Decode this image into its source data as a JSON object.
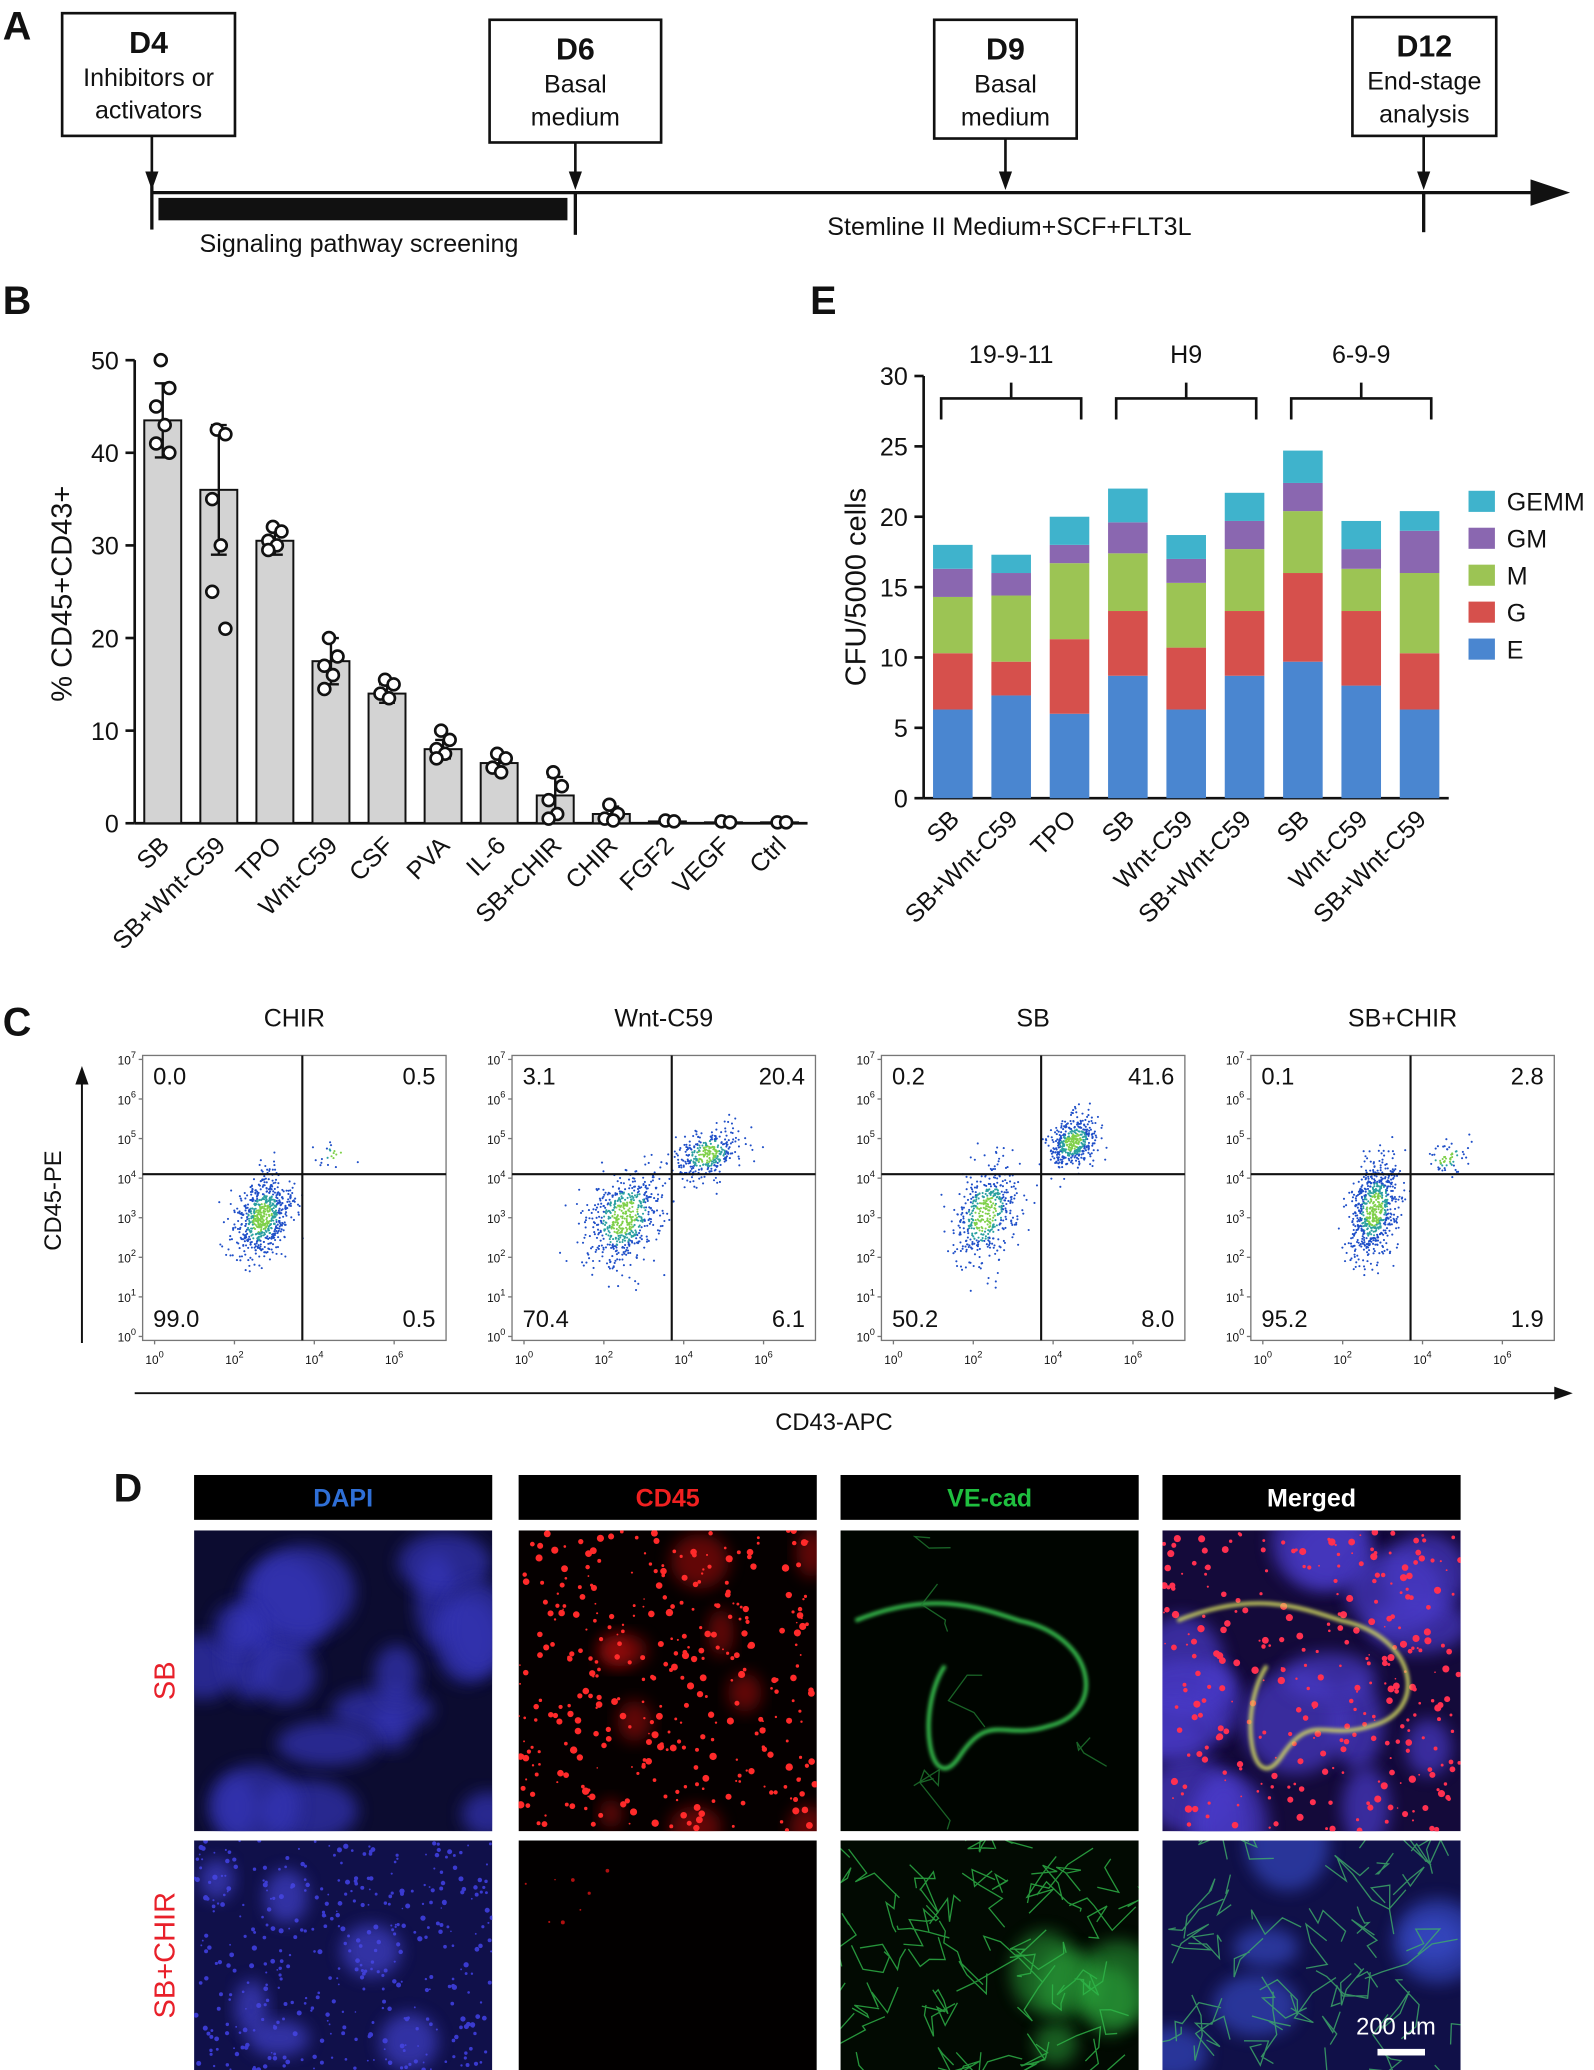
{
  "timeline": {
    "panel": "A",
    "steps": [
      {
        "day": "D4",
        "lines": [
          "Inhibitors or",
          "activators"
        ]
      },
      {
        "day": "D6",
        "lines": [
          "Basal",
          "medium"
        ]
      },
      {
        "day": "D9",
        "lines": [
          "Basal",
          "medium"
        ]
      },
      {
        "day": "D12",
        "lines": [
          "End-stage",
          "analysis"
        ]
      }
    ],
    "screening": "Signaling pathway screening",
    "medium": "Stemline II Medium+SCF+FLT3L"
  },
  "chart_data": [
    {
      "type": "bar",
      "panel": "B",
      "ylabel": "% CD45+CD43+",
      "categories": [
        "SB",
        "SB+Wnt-C59",
        "TPO",
        "Wnt-C59",
        "CSF",
        "PVA",
        "IL-6",
        "SB+CHIR",
        "CHIR",
        "FGF2",
        "VEGF",
        "Ctrl"
      ],
      "values": [
        43.5,
        36,
        30.5,
        17.5,
        14,
        8,
        6.5,
        3,
        1,
        0.2,
        0.1,
        0.1
      ],
      "errors": [
        4,
        7,
        1.5,
        2.5,
        1,
        1,
        1,
        2,
        0.8,
        0.1,
        0.1,
        0.1
      ],
      "points": [
        [
          50,
          47,
          45,
          43,
          41,
          40
        ],
        [
          42.5,
          42,
          35,
          30,
          25,
          21
        ],
        [
          32,
          31.5,
          30.5,
          30,
          29.5
        ],
        [
          20,
          18,
          17,
          16,
          14.5
        ],
        [
          15.5,
          15,
          14,
          13.5
        ],
        [
          10,
          9,
          8,
          7.5,
          7
        ],
        [
          7.5,
          7,
          6,
          5.5
        ],
        [
          5.5,
          4,
          2.5,
          1,
          0.5
        ],
        [
          2,
          1,
          0.5,
          0.3
        ],
        [
          0.3,
          0.2
        ],
        [
          0.2,
          0.1
        ],
        [
          0.1,
          0.1
        ]
      ],
      "color": "#d3d3d3",
      "ylim": [
        0,
        50
      ],
      "yticks": [
        0,
        10,
        20,
        30,
        40,
        50
      ]
    },
    {
      "type": "stacked_bar",
      "panel": "E",
      "ylabel": "CFU/5000 cells",
      "categories": [
        "SB",
        "SB+Wnt-C59",
        "TPO",
        "SB",
        "Wnt-C59",
        "SB+Wnt-C59",
        "SB",
        "Wnt-C59",
        "SB+Wnt-C59"
      ],
      "groups": [
        "19-9-11",
        "H9",
        "6-9-9"
      ],
      "series": [
        {
          "name": "E",
          "color": "#4a86d0",
          "values": [
            6.3,
            7.3,
            6,
            8.7,
            6.3,
            8.7,
            9.7,
            8,
            6.3
          ]
        },
        {
          "name": "G",
          "color": "#d6504c",
          "values": [
            4,
            2.4,
            5.3,
            4.6,
            4.4,
            4.6,
            6.3,
            5.3,
            4
          ]
        },
        {
          "name": "M",
          "color": "#9cc454",
          "values": [
            4,
            4.7,
            5.4,
            4.1,
            4.6,
            4.4,
            4.4,
            3,
            5.7
          ]
        },
        {
          "name": "GM",
          "color": "#8a67b0",
          "values": [
            2,
            1.6,
            1.3,
            2.2,
            1.7,
            2,
            2,
            1.4,
            3
          ]
        },
        {
          "name": "GEMM",
          "color": "#3fb3cc",
          "values": [
            1.7,
            1.3,
            2,
            2.4,
            1.7,
            2,
            2.3,
            2,
            1.4
          ]
        }
      ],
      "ylim": [
        0,
        30
      ],
      "yticks": [
        0,
        5,
        10,
        15,
        20,
        25,
        30
      ],
      "legend": "right"
    }
  ],
  "flow": {
    "panel": "C",
    "xlabel": "CD43-APC",
    "ylabel": "CD45-PE",
    "tick_base": "10",
    "xtick_exponents": [
      0,
      2,
      4,
      6
    ],
    "ytick_exponents": [
      0,
      1,
      2,
      3,
      4,
      5,
      6,
      7
    ],
    "xlim": [
      -0.3,
      7.3
    ],
    "ylim": [
      -0.1,
      7.1
    ],
    "gates": {
      "x": 3.7,
      "y": 4.1
    },
    "plots": [
      {
        "title": "CHIR",
        "quadrants": [
          "0.0",
          "0.5",
          "99.0",
          "0.5"
        ]
      },
      {
        "title": "Wnt-C59",
        "quadrants": [
          "3.1",
          "20.4",
          "70.4",
          "6.1"
        ]
      },
      {
        "title": "SB",
        "quadrants": [
          "0.2",
          "41.6",
          "50.2",
          "8.0"
        ]
      },
      {
        "title": "SB+CHIR",
        "quadrants": [
          "0.1",
          "2.8",
          "95.2",
          "1.9"
        ]
      }
    ]
  },
  "images": {
    "panel": "D",
    "columns": [
      "DAPI",
      "CD45",
      "VE-cad",
      "Merged"
    ],
    "rows": [
      "SB",
      "SB+CHIR"
    ],
    "scale_bar": "200 µm"
  }
}
